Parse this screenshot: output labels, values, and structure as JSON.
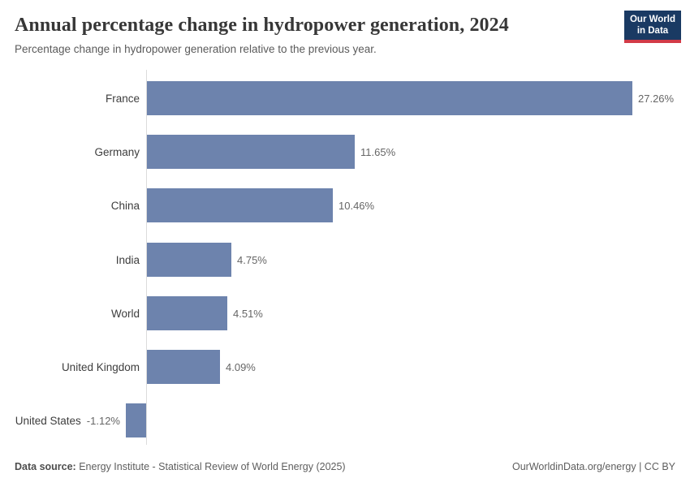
{
  "header": {
    "title": "Annual percentage change in hydropower generation, 2024",
    "subtitle": "Percentage change in hydropower generation relative to the previous year.",
    "logo": {
      "line1": "Our World",
      "line2": "in Data",
      "bg_color": "#1a3a63",
      "accent_color": "#d23a47"
    }
  },
  "chart_data": {
    "type": "bar",
    "orientation": "horizontal",
    "title": "Annual percentage change in hydropower generation, 2024",
    "xlabel": "",
    "ylabel": "",
    "categories": [
      "France",
      "Germany",
      "China",
      "India",
      "World",
      "United Kingdom",
      "United States"
    ],
    "values": [
      27.26,
      11.65,
      10.46,
      4.75,
      4.51,
      4.09,
      -1.12
    ],
    "value_labels": [
      "27.26%",
      "11.65%",
      "10.46%",
      "4.75%",
      "4.51%",
      "4.09%",
      "-1.12%"
    ],
    "xlim": [
      -1.12,
      27.26
    ],
    "grid": false,
    "legend": false,
    "bar_color": "#6d83ad",
    "axis_color": "#dcdcdc"
  },
  "footer": {
    "source_label": "Data source:",
    "source_text": " Energy Institute - Statistical Review of World Energy (2025)",
    "credit": "OurWorldinData.org/energy | CC BY"
  }
}
